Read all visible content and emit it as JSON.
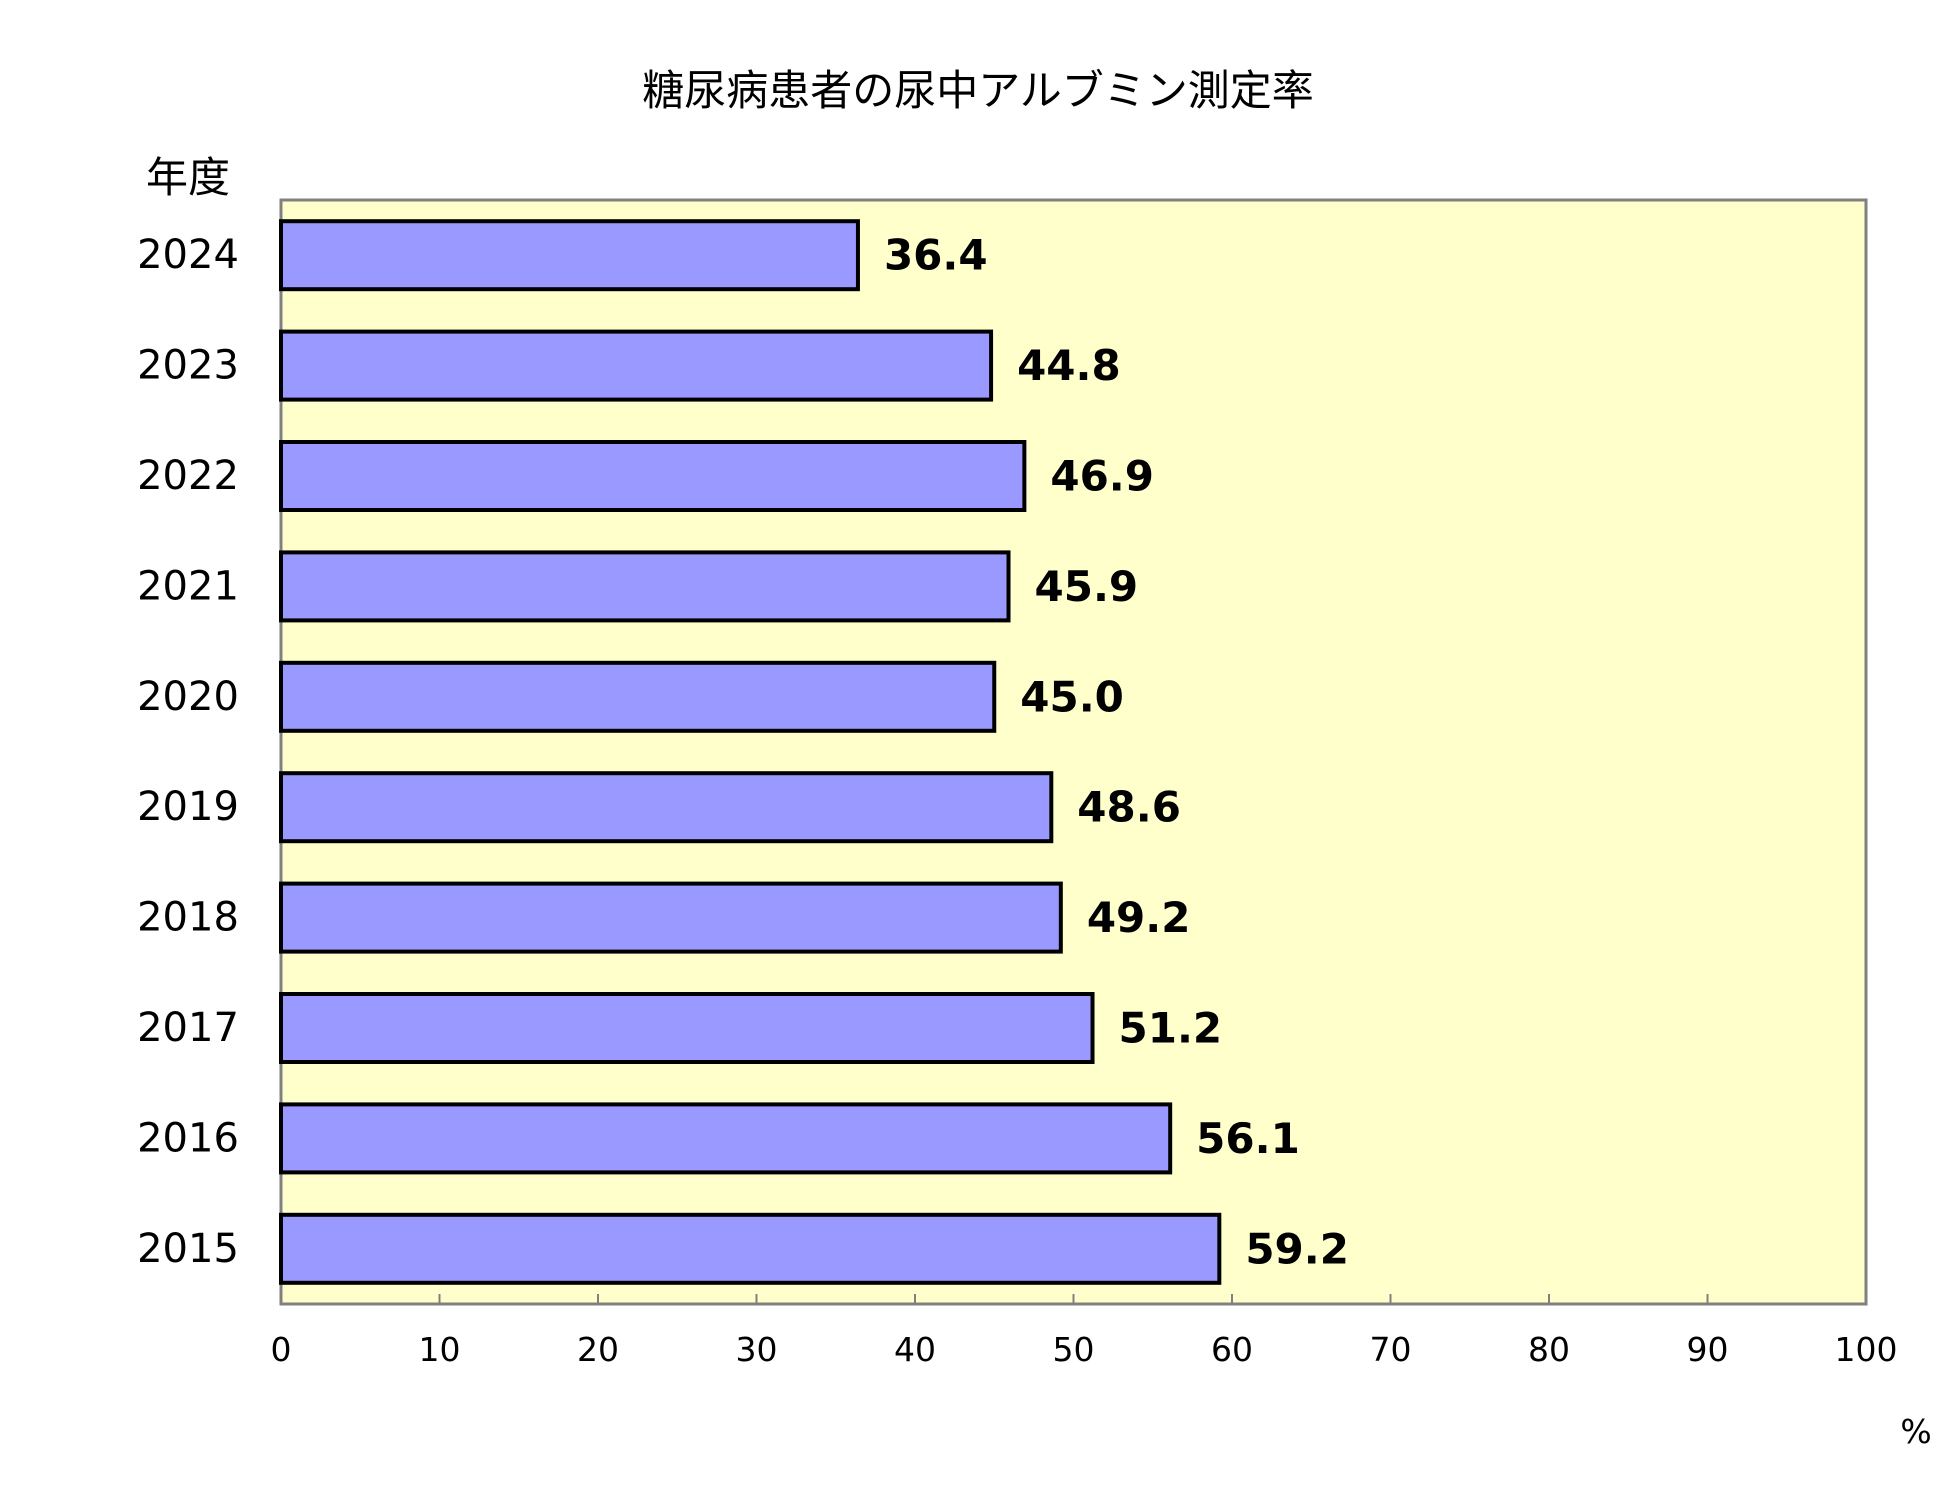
{
  "chart_data": {
    "type": "bar",
    "orientation": "horizontal",
    "title": "糖尿病患者の尿中アルブミン測定率",
    "ylabel": "年度",
    "x_unit": "%",
    "categories": [
      "2024",
      "2023",
      "2022",
      "2021",
      "2020",
      "2019",
      "2018",
      "2017",
      "2016",
      "2015"
    ],
    "values": [
      36.4,
      44.8,
      46.9,
      45.9,
      45.0,
      48.6,
      49.2,
      51.2,
      56.1,
      59.2
    ],
    "data_labels": [
      "36.4",
      "44.8",
      "46.9",
      "45.9",
      "45.0",
      "48.6",
      "49.2",
      "51.2",
      "56.1",
      "59.2"
    ],
    "xlim": [
      0,
      100
    ],
    "x_ticks": [
      "0",
      "10",
      "20",
      "30",
      "40",
      "50",
      "60",
      "70",
      "80",
      "90",
      "100"
    ],
    "grid": false,
    "legend": "none",
    "colors": {
      "bar_fill": "#9999ff",
      "bar_stroke": "#000000",
      "plot_background": "#ffffcc",
      "plot_border": "#808080",
      "axis": "#808080"
    }
  }
}
